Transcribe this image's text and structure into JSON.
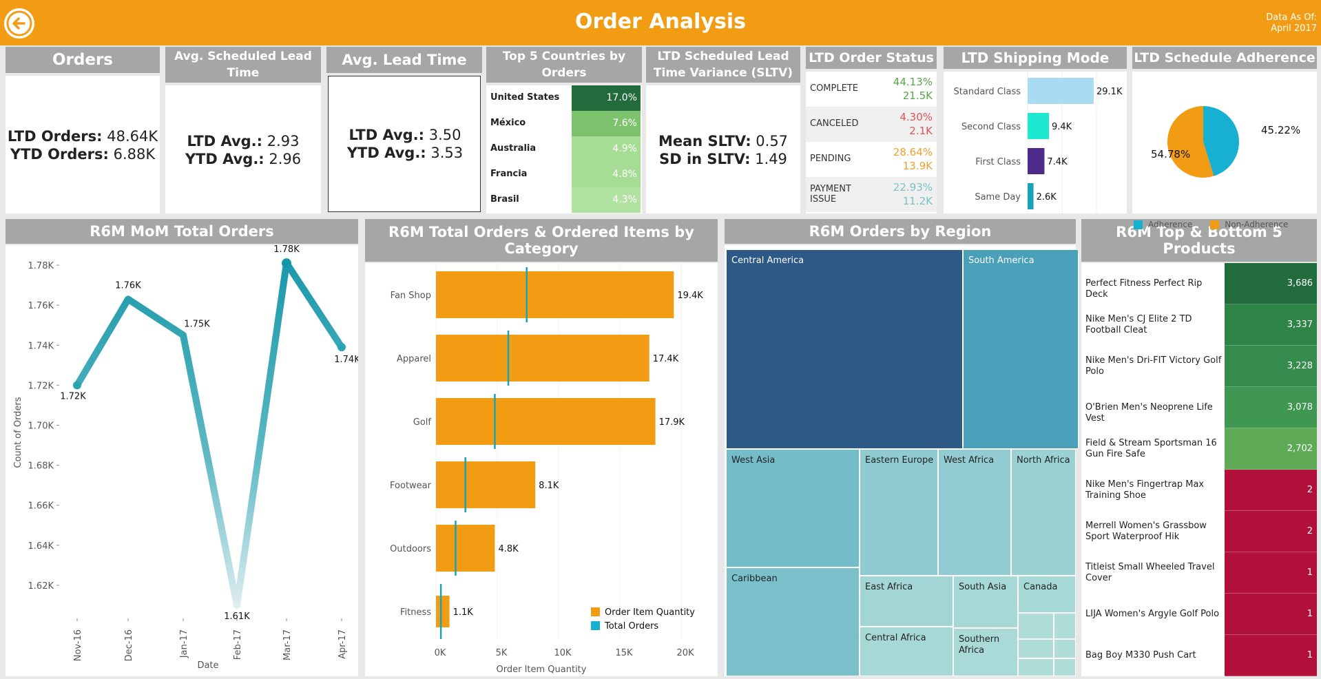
{
  "header": {
    "title": "Order Analysis",
    "asof_line1": "Data As Of:",
    "asof_line2": "April 2017"
  },
  "kpi": {
    "orders": {
      "title": "Orders",
      "l1_label": "LTD Orders:",
      "l1_value": "48.64K",
      "l2_label": "YTD Orders:",
      "l2_value": "6.88K"
    },
    "sched_lead": {
      "title": "Avg. Scheduled Lead Time",
      "l1_label": "LTD Avg.:",
      "l1_value": "2.93",
      "l2_label": "YTD Avg.:",
      "l2_value": "2.96"
    },
    "lead": {
      "title": "Avg. Lead Time",
      "l1_label": "LTD Avg.:",
      "l1_value": "3.50",
      "l2_label": "YTD Avg.:",
      "l2_value": "3.53"
    },
    "sltv": {
      "title": "LTD Scheduled Lead Time Variance (SLTV)",
      "l1_label": "Mean SLTV:",
      "l1_value": "0.57",
      "l2_label": "SD in SLTV:",
      "l2_value": "1.49"
    }
  },
  "top_countries": {
    "title": "Top 5 Countries by Orders",
    "rows": [
      {
        "name": "United States",
        "value": "17.0%",
        "color": "#216b3c"
      },
      {
        "name": "México",
        "value": "7.6%",
        "color": "#7dc36d"
      },
      {
        "name": "Australia",
        "value": "4.9%",
        "color": "#a6dd95"
      },
      {
        "name": "Francia",
        "value": "4.8%",
        "color": "#a6dd95"
      },
      {
        "name": "Brasil",
        "value": "4.3%",
        "color": "#b2e2a1"
      }
    ]
  },
  "order_status": {
    "title": "LTD Order Status",
    "rows": [
      {
        "label": "COMPLETE",
        "pct": "44.13%",
        "count": "21.5K",
        "color": "#59a64a"
      },
      {
        "label": "CANCELED",
        "pct": "4.30%",
        "count": "2.1K",
        "color": "#e05555"
      },
      {
        "label": "PENDING",
        "pct": "28.64%",
        "count": "13.9K",
        "color": "#f0a030"
      },
      {
        "label": "PAYMENT ISSUE",
        "pct": "22.93%",
        "count": "11.2K",
        "color": "#79c2c2"
      }
    ]
  },
  "shipping": {
    "title": "LTD Shipping Mode",
    "rows": [
      {
        "label": "Standard Class",
        "value": 29.1,
        "text": "29.1K",
        "color": "#a8dcf0"
      },
      {
        "label": "Second Class",
        "value": 9.4,
        "text": "9.4K",
        "color": "#1ee8cf"
      },
      {
        "label": "First Class",
        "value": 7.4,
        "text": "7.4K",
        "color": "#4b2a8a"
      },
      {
        "label": "Same Day",
        "value": 2.6,
        "text": "2.6K",
        "color": "#1aa3b5"
      }
    ]
  },
  "adherence": {
    "title": "LTD Schedule Adherence",
    "slices": [
      {
        "name": "Adherence",
        "value": 45.22,
        "text": "45.22%",
        "color": "#17b0d0"
      },
      {
        "name": "Non-Adherence",
        "value": 54.78,
        "text": "54.78%",
        "color": "#f29c13"
      }
    ]
  },
  "mom": {
    "title": "R6M MoM Total Orders",
    "ylabel": "Count of Orders",
    "xlabel": "Date",
    "months": [
      "Nov-16",
      "Dec-16",
      "Jan-17",
      "Feb-17",
      "Mar-17",
      "Apr-17"
    ],
    "values": [
      1.72,
      1.763,
      1.745,
      1.61,
      1.781,
      1.739
    ],
    "labels": [
      "1.72K",
      "1.76K",
      "1.75K",
      "1.61K",
      "1.78K",
      "1.74K"
    ],
    "yticks": [
      "1.62K",
      "1.64K",
      "1.66K",
      "1.68K",
      "1.70K",
      "1.72K",
      "1.74K",
      "1.76K",
      "1.78K"
    ],
    "ylim": [
      1.6,
      1.79
    ]
  },
  "category": {
    "title": "R6M Total Orders & Ordered Items by Category",
    "xlabel": "Order Item Quantity",
    "legend_items": "Order Item Quantity",
    "legend_orders": "Total Orders",
    "categories": [
      "Fan Shop",
      "Apparel",
      "Golf",
      "Footwear",
      "Outdoors",
      "Fitness"
    ],
    "items": [
      19.4,
      17.4,
      17.9,
      8.1,
      4.8,
      1.1
    ],
    "item_labels": [
      "19.4K",
      "17.4K",
      "17.9K",
      "8.1K",
      "4.8K",
      "1.1K"
    ],
    "orders": [
      7.4,
      5.9,
      4.8,
      2.4,
      1.6,
      0.4
    ],
    "xticks": [
      "0K",
      "5K",
      "10K",
      "15K",
      "20K"
    ],
    "xlim": [
      0,
      20
    ]
  },
  "region": {
    "title": "R6M Orders by Region",
    "cells": [
      {
        "name": "Central America",
        "color": "#2d5986",
        "dark": true
      },
      {
        "name": "South America",
        "color": "#4aa0b8",
        "dark": true
      },
      {
        "name": "West Asia",
        "color": "#74bcc8"
      },
      {
        "name": "Eastern Europe",
        "color": "#8fcbd1"
      },
      {
        "name": "West Africa",
        "color": "#92ccd2"
      },
      {
        "name": "North Africa",
        "color": "#9ad2d4"
      },
      {
        "name": "Caribbean",
        "color": "#7ac0cb"
      },
      {
        "name": "East Africa",
        "color": "#a2d6d4"
      },
      {
        "name": "South Asia",
        "color": "#a6d8d6"
      },
      {
        "name": "Canada",
        "color": "#a6d9d6"
      },
      {
        "name": "Central Africa",
        "color": "#a6d8d6"
      },
      {
        "name": "Southern Africa",
        "color": "#a9dad7"
      }
    ]
  },
  "products": {
    "title": "R6M Top & Bottom 5 Products",
    "rows": [
      {
        "name": "Perfect Fitness Perfect Rip Deck",
        "value": "3,686",
        "color": "#226b3d"
      },
      {
        "name": "Nike Men's CJ Elite 2 TD Football Cleat",
        "value": "3,337",
        "color": "#2f8547"
      },
      {
        "name": "Nike Men's Dri-FIT Victory Golf Polo",
        "value": "3,228",
        "color": "#368c4c"
      },
      {
        "name": "O'Brien Men's Neoprene Life Vest",
        "value": "3,078",
        "color": "#3f9752"
      },
      {
        "name": "Field & Stream Sportsman 16 Gun Fire Safe",
        "value": "2,702",
        "color": "#5faa57"
      },
      {
        "name": "Nike Men's Fingertrap Max Training Shoe",
        "value": "2",
        "color": "#b0103a"
      },
      {
        "name": "Merrell Women's Grassbow Sport Waterproof Hik",
        "value": "2",
        "color": "#b0103a"
      },
      {
        "name": "Titleist Small Wheeled Travel Cover",
        "value": "1",
        "color": "#b0103a"
      },
      {
        "name": "LIJA Women's Argyle Golf Polo",
        "value": "1",
        "color": "#b0103a"
      },
      {
        "name": "Bag Boy M330 Push Cart",
        "value": "1",
        "color": "#b0103a"
      }
    ]
  },
  "chart_data": [
    {
      "type": "line",
      "title": "R6M MoM Total Orders",
      "xlabel": "Date",
      "ylabel": "Count of Orders",
      "categories": [
        "Nov-16",
        "Dec-16",
        "Jan-17",
        "Feb-17",
        "Mar-17",
        "Apr-17"
      ],
      "values": [
        1720,
        1763,
        1745,
        1610,
        1781,
        1739
      ],
      "ylim": [
        1600,
        1790
      ]
    },
    {
      "type": "bar",
      "title": "R6M Total Orders & Ordered Items by Category",
      "xlabel": "Order Item Quantity",
      "categories": [
        "Fan Shop",
        "Apparel",
        "Golf",
        "Footwear",
        "Outdoors",
        "Fitness"
      ],
      "series": [
        {
          "name": "Order Item Quantity",
          "values": [
            19400,
            17400,
            17900,
            8100,
            4800,
            1100
          ]
        },
        {
          "name": "Total Orders",
          "values": [
            7400,
            5900,
            4800,
            2400,
            1600,
            400
          ]
        }
      ],
      "xlim": [
        0,
        20000
      ]
    },
    {
      "type": "pie",
      "title": "LTD Schedule Adherence",
      "categories": [
        "Adherence",
        "Non-Adherence"
      ],
      "values": [
        45.22,
        54.78
      ]
    },
    {
      "type": "bar",
      "title": "LTD Shipping Mode",
      "categories": [
        "Standard Class",
        "Second Class",
        "First Class",
        "Same Day"
      ],
      "values": [
        29100,
        9400,
        7400,
        2600
      ]
    }
  ]
}
